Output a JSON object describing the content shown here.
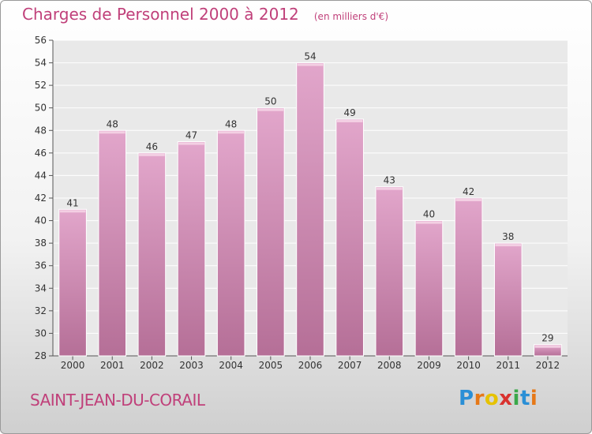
{
  "header": {
    "title": "Charges de Personnel 2000 à 2012",
    "unit": "(en milliers d'€)"
  },
  "footer": {
    "place": "SAINT-JEAN-DU-CORAIL",
    "logo": [
      "P",
      "r",
      "o",
      "x",
      "i",
      "t",
      "i"
    ],
    "logo_colors": [
      "#2a8fd6",
      "#e67817",
      "#e6c200",
      "#d9322f",
      "#3aa84a",
      "#2a8fd6",
      "#e67817"
    ]
  },
  "chart_data": {
    "type": "bar",
    "categories": [
      "2000",
      "2001",
      "2002",
      "2003",
      "2004",
      "2005",
      "2006",
      "2007",
      "2008",
      "2009",
      "2010",
      "2011",
      "2012"
    ],
    "values": [
      41,
      48,
      46,
      47,
      48,
      50,
      54,
      49,
      43,
      40,
      42,
      38,
      29
    ],
    "data_labels": [
      "41",
      "48",
      "46",
      "47",
      "48",
      "50",
      "54",
      "49",
      "43",
      "40",
      "42",
      "38",
      "29"
    ],
    "title": "Charges de Personnel 2000 à 2012",
    "xlabel": "",
    "ylabel": "",
    "ylim": [
      28,
      56
    ],
    "yticks": [
      28,
      30,
      32,
      34,
      36,
      38,
      40,
      42,
      44,
      46,
      48,
      50,
      52,
      54,
      56
    ],
    "ytick_labels": [
      "28",
      "30",
      "32",
      "34",
      "36",
      "38",
      "40",
      "42",
      "44",
      "46",
      "48",
      "50",
      "52",
      "54",
      "56"
    ],
    "grid": true,
    "legend": "none",
    "bar_color": "#d78fbb"
  }
}
